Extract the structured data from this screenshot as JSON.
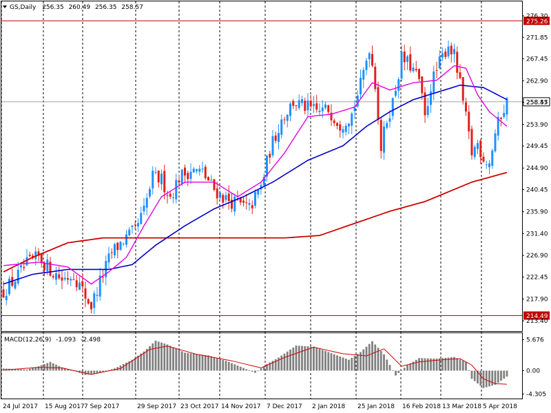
{
  "header": {
    "symbol": "GS,Daily",
    "open": "256.35",
    "high": "260.49",
    "low": "256.35",
    "close": "258.57"
  },
  "macd": {
    "label": "MACD(12,26,9)",
    "main": "-1.093",
    "signal": "-2.498"
  },
  "colors": {
    "up": "#1E90FF",
    "down": "#E0201C",
    "ma_fast": "#E100E1",
    "ma_mid": "#0000C8",
    "ma_slow": "#D00000",
    "macd_bar": "#808080",
    "macd_signal": "#D00000",
    "level_line": "#C00000",
    "current_line": "#A0A0A0",
    "grid": "#000000"
  },
  "chart_data": [
    {
      "type": "candlestick",
      "title": "",
      "instrument": "GS",
      "timeframe": "Daily",
      "ylim": [
        212.0,
        277.0
      ],
      "price_ticks": [
        "276.30",
        "271.85",
        "267.45",
        "262.90",
        "258.45",
        "253.90",
        "249.45",
        "244.90",
        "240.45",
        "235.90",
        "231.40",
        "226.90",
        "222.45",
        "217.90",
        "213.40"
      ],
      "x_labels": [
        "24 Jul 2017",
        "15 Aug 2017",
        "7 Sep 2017",
        "29 Sep 2017",
        "23 Oct 2017",
        "14 Nov 2017",
        "7 Dec 2017",
        "2 Jan 2018",
        "25 Jan 2018",
        "16 Feb 2018",
        "13 Mar 2018",
        "5 Apr 2018"
      ],
      "horizontal_levels": [
        {
          "value": "275.26",
          "kind": "level"
        },
        {
          "value": "214.49",
          "kind": "level"
        },
        {
          "value": "258.57",
          "kind": "current"
        }
      ],
      "anchors": [
        [
          0,
          219.5
        ],
        [
          4,
          222.0
        ],
        [
          8,
          225.0
        ],
        [
          12,
          226.5
        ],
        [
          16,
          224.0
        ],
        [
          20,
          222.0
        ],
        [
          24,
          223.0
        ],
        [
          28,
          218.5
        ],
        [
          30,
          216.5
        ],
        [
          33,
          221.5
        ],
        [
          37,
          227.5
        ],
        [
          41,
          230.0
        ],
        [
          45,
          232.0
        ],
        [
          48,
          236.0
        ],
        [
          51,
          243.0
        ],
        [
          54,
          242.5
        ],
        [
          57,
          239.0
        ],
        [
          60,
          243.0
        ],
        [
          64,
          244.5
        ],
        [
          68,
          244.0
        ],
        [
          72,
          240.5
        ],
        [
          76,
          238.5
        ],
        [
          80,
          237.5
        ],
        [
          84,
          236.5
        ],
        [
          88,
          241.0
        ],
        [
          91,
          248.5
        ],
        [
          95,
          255.0
        ],
        [
          99,
          258.5
        ],
        [
          103,
          257.5
        ],
        [
          107,
          256.5
        ],
        [
          111,
          257.0
        ],
        [
          115,
          254.0
        ],
        [
          119,
          256.0
        ],
        [
          122,
          262.0
        ],
        [
          125,
          270.0
        ],
        [
          127,
          262.5
        ],
        [
          129,
          249.0
        ],
        [
          131,
          255.0
        ],
        [
          133,
          258.5
        ],
        [
          136,
          267.5
        ],
        [
          139,
          266.0
        ],
        [
          142,
          263.0
        ],
        [
          144,
          255.0
        ],
        [
          146,
          262.0
        ],
        [
          149,
          266.5
        ],
        [
          152,
          270.5
        ],
        [
          154,
          268.0
        ],
        [
          156,
          262.0
        ],
        [
          158,
          255.0
        ],
        [
          160,
          248.0
        ],
        [
          162,
          250.0
        ],
        [
          164,
          247.0
        ],
        [
          166,
          246.0
        ],
        [
          168,
          252.0
        ],
        [
          170,
          256.0
        ],
        [
          172,
          258.5
        ]
      ],
      "ma_fast_anchors": [
        [
          0,
          224.8
        ],
        [
          12,
          225.5
        ],
        [
          22,
          224.5
        ],
        [
          30,
          221.0
        ],
        [
          36,
          223.5
        ],
        [
          42,
          226.5
        ],
        [
          48,
          233.0
        ],
        [
          54,
          239.0
        ],
        [
          62,
          242.0
        ],
        [
          72,
          242.0
        ],
        [
          80,
          239.0
        ],
        [
          88,
          242.0
        ],
        [
          96,
          248.0
        ],
        [
          104,
          255.5
        ],
        [
          112,
          256.0
        ],
        [
          120,
          257.5
        ],
        [
          126,
          262.5
        ],
        [
          132,
          261.0
        ],
        [
          140,
          262.5
        ],
        [
          148,
          263.0
        ],
        [
          154,
          266.0
        ],
        [
          158,
          265.5
        ],
        [
          162,
          260.0
        ],
        [
          166,
          256.5
        ],
        [
          170,
          254.5
        ],
        [
          172,
          253.5
        ]
      ],
      "ma_mid_anchors": [
        [
          0,
          221.0
        ],
        [
          10,
          223.0
        ],
        [
          22,
          224.0
        ],
        [
          36,
          224.0
        ],
        [
          44,
          225.0
        ],
        [
          52,
          229.0
        ],
        [
          62,
          233.0
        ],
        [
          72,
          236.5
        ],
        [
          82,
          239.0
        ],
        [
          92,
          242.0
        ],
        [
          104,
          246.5
        ],
        [
          116,
          249.5
        ],
        [
          124,
          253.5
        ],
        [
          132,
          256.5
        ],
        [
          140,
          259.0
        ],
        [
          148,
          260.5
        ],
        [
          156,
          262.0
        ],
        [
          164,
          261.5
        ],
        [
          172,
          259.0
        ]
      ],
      "ma_slow_anchors": [
        [
          0,
          223.5
        ],
        [
          10,
          226.5
        ],
        [
          22,
          229.5
        ],
        [
          34,
          230.5
        ],
        [
          60,
          230.5
        ],
        [
          80,
          230.5
        ],
        [
          96,
          230.5
        ],
        [
          108,
          231.0
        ],
        [
          120,
          233.5
        ],
        [
          132,
          236.0
        ],
        [
          144,
          238.0
        ],
        [
          152,
          240.0
        ],
        [
          160,
          242.0
        ],
        [
          172,
          244.0
        ]
      ]
    },
    {
      "type": "bar",
      "title": "MACD(12,26,9)",
      "series": [
        {
          "name": "MACD",
          "value_label": "-1.093"
        },
        {
          "name": "Signal",
          "value_label": "-2.498"
        }
      ],
      "ylim": [
        -5.0,
        6.5
      ],
      "ticks": [
        "5.676",
        "0.00",
        "-4.305"
      ],
      "macd_anchors": [
        [
          0,
          0.4
        ],
        [
          8,
          0.2
        ],
        [
          12,
          0.8
        ],
        [
          16,
          1.6
        ],
        [
          20,
          0.6
        ],
        [
          24,
          0.0
        ],
        [
          28,
          -0.8
        ],
        [
          32,
          -0.5
        ],
        [
          38,
          0.4
        ],
        [
          44,
          2.0
        ],
        [
          48,
          3.5
        ],
        [
          52,
          5.5
        ],
        [
          56,
          4.8
        ],
        [
          62,
          3.3
        ],
        [
          70,
          2.8
        ],
        [
          76,
          1.8
        ],
        [
          82,
          0.5
        ],
        [
          86,
          -0.4
        ],
        [
          90,
          1.2
        ],
        [
          94,
          2.4
        ],
        [
          100,
          4.6
        ],
        [
          106,
          4.4
        ],
        [
          112,
          3.2
        ],
        [
          118,
          2.0
        ],
        [
          122,
          3.4
        ],
        [
          126,
          5.4
        ],
        [
          130,
          3.0
        ],
        [
          134,
          -0.9
        ],
        [
          138,
          1.0
        ],
        [
          142,
          2.3
        ],
        [
          148,
          2.2
        ],
        [
          154,
          2.5
        ],
        [
          158,
          1.6
        ],
        [
          160,
          -1.5
        ],
        [
          164,
          -3.2
        ],
        [
          168,
          -2.6
        ],
        [
          172,
          -1.1
        ]
      ],
      "signal_anchors": [
        [
          0,
          0.1
        ],
        [
          12,
          0.6
        ],
        [
          20,
          0.5
        ],
        [
          30,
          -0.7
        ],
        [
          40,
          0.4
        ],
        [
          50,
          3.9
        ],
        [
          56,
          4.5
        ],
        [
          66,
          3.0
        ],
        [
          78,
          1.8
        ],
        [
          88,
          0.5
        ],
        [
          96,
          2.4
        ],
        [
          106,
          4.3
        ],
        [
          116,
          3.1
        ],
        [
          124,
          2.7
        ],
        [
          130,
          4.0
        ],
        [
          136,
          0.8
        ],
        [
          142,
          1.6
        ],
        [
          150,
          2.0
        ],
        [
          156,
          2.2
        ],
        [
          160,
          1.0
        ],
        [
          164,
          -1.5
        ],
        [
          168,
          -2.4
        ],
        [
          172,
          -2.5
        ]
      ]
    }
  ]
}
